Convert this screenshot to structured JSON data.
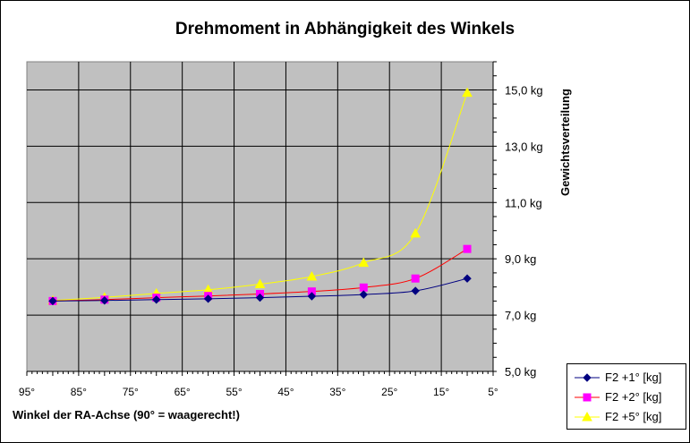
{
  "chart_data": {
    "type": "line",
    "title": "Drehmoment in Abhängigkeit des Winkels",
    "xlabel": "Winkel der RA-Achse (90° = waagerecht!)",
    "ylabel": "Gewichtsverteilung",
    "x_reversed": true,
    "xlim": [
      95,
      5
    ],
    "x_ticks": [
      95,
      85,
      75,
      65,
      55,
      45,
      35,
      25,
      15,
      5
    ],
    "x_tick_labels": [
      "95°",
      "85°",
      "75°",
      "65°",
      "55°",
      "45°",
      "35°",
      "25°",
      "15°",
      "5°"
    ],
    "ylim": [
      5.0,
      16.0
    ],
    "y_ticks": [
      5.0,
      7.0,
      9.0,
      11.0,
      13.0,
      15.0
    ],
    "y_tick_labels": [
      "5,0 kg",
      "7,0 kg",
      "9,0 kg",
      "11,0 kg",
      "13,0 kg",
      "15,0 kg"
    ],
    "y_axis_side": "right",
    "grid": true,
    "plot_background": "#c0c0c0",
    "legend_position": "bottom-right",
    "x": [
      90,
      80,
      70,
      60,
      50,
      40,
      30,
      20,
      10
    ],
    "series": [
      {
        "name": "F2 +1° [kg]",
        "color": "#000080",
        "marker": "diamond",
        "values": [
          7.5,
          7.52,
          7.55,
          7.58,
          7.62,
          7.67,
          7.73,
          7.86,
          8.3
        ]
      },
      {
        "name": "F2 +2° [kg]",
        "color": "#ff00ff",
        "marker": "square",
        "line_color": "#ff0000",
        "values": [
          7.5,
          7.55,
          7.62,
          7.68,
          7.75,
          7.84,
          7.98,
          8.3,
          9.35
        ]
      },
      {
        "name": "F2 +5° [kg]",
        "color": "#ffff00",
        "marker": "triangle",
        "values": [
          7.52,
          7.63,
          7.77,
          7.9,
          8.1,
          8.37,
          8.86,
          9.9,
          14.9
        ]
      }
    ]
  }
}
